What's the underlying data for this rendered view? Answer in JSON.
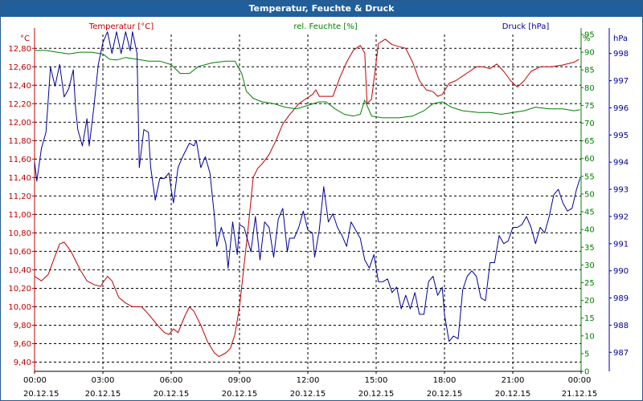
{
  "window": {
    "title": "Temperatur, Feuchte & Druck"
  },
  "chart_data": {
    "type": "line",
    "title": "Temperatur, Feuchte & Druck",
    "grid": true,
    "colors": {
      "temperature": "#c00000",
      "humidity": "#008000",
      "pressure": "#000099",
      "grid": "#000000"
    },
    "x_ticks": [
      {
        "time": "00:00",
        "date": "20.12.15"
      },
      {
        "time": "03:00",
        "date": "20.12.15"
      },
      {
        "time": "06:00",
        "date": "20.12.15"
      },
      {
        "time": "09:00",
        "date": "20.12.15"
      },
      {
        "time": "12:00",
        "date": "20.12.15"
      },
      {
        "time": "15:00",
        "date": "20.12.15"
      },
      {
        "time": "18:00",
        "date": "20.12.15"
      },
      {
        "time": "21:00",
        "date": "20.12.15"
      },
      {
        "time": "00:00",
        "date": "21.12.15"
      }
    ],
    "x_range_hours": [
      0,
      24
    ],
    "axes": {
      "temperature": {
        "label": "Temperatur [°C]",
        "unit": "°C",
        "side": "left",
        "range": [
          9.3,
          12.95
        ],
        "ticks": [
          "9,40",
          "9,60",
          "9,80",
          "10,00",
          "10,20",
          "10,40",
          "10,60",
          "10,80",
          "11,00",
          "11,20",
          "11,40",
          "11,60",
          "11,80",
          "12,00",
          "12,20",
          "12,40",
          "12,60",
          "12,80"
        ]
      },
      "humidity": {
        "label": "rel. Feuchte [%]",
        "unit": "%",
        "side": "right",
        "range": [
          0,
          95
        ],
        "ticks": [
          "0",
          "5",
          "10",
          "15",
          "20",
          "25",
          "30",
          "35",
          "40",
          "45",
          "50",
          "55",
          "60",
          "65",
          "70",
          "75",
          "80",
          "85",
          "90",
          "95"
        ]
      },
      "pressure": {
        "label": "Druck [hPa]",
        "unit": "hPa",
        "side": "right",
        "range": [
          986.3,
          998.7
        ],
        "ticks": [
          "987",
          "988",
          "989",
          "990",
          "991",
          "992",
          "993",
          "994",
          "995",
          "996",
          "997",
          "998"
        ]
      }
    },
    "series": [
      {
        "name": "Temperatur [°C]",
        "axis": "temperature",
        "points": [
          [
            0,
            10.33
          ],
          [
            0.3,
            10.28
          ],
          [
            0.6,
            10.35
          ],
          [
            0.9,
            10.55
          ],
          [
            1.1,
            10.68
          ],
          [
            1.3,
            10.7
          ],
          [
            1.6,
            10.6
          ],
          [
            2.0,
            10.4
          ],
          [
            2.3,
            10.28
          ],
          [
            2.6,
            10.24
          ],
          [
            2.9,
            10.22
          ],
          [
            3.0,
            10.26
          ],
          [
            3.2,
            10.33
          ],
          [
            3.4,
            10.28
          ],
          [
            3.7,
            10.1
          ],
          [
            4.0,
            10.04
          ],
          [
            4.3,
            10.0
          ],
          [
            4.7,
            10.0
          ],
          [
            5.0,
            9.92
          ],
          [
            5.4,
            9.8
          ],
          [
            5.7,
            9.72
          ],
          [
            5.9,
            9.7
          ],
          [
            6.1,
            9.76
          ],
          [
            6.3,
            9.72
          ],
          [
            6.6,
            9.9
          ],
          [
            6.8,
            10.0
          ],
          [
            7.0,
            9.95
          ],
          [
            7.3,
            9.8
          ],
          [
            7.6,
            9.62
          ],
          [
            7.9,
            9.5
          ],
          [
            8.1,
            9.46
          ],
          [
            8.4,
            9.5
          ],
          [
            8.6,
            9.55
          ],
          [
            8.8,
            9.7
          ],
          [
            9.0,
            10.0
          ],
          [
            9.2,
            10.45
          ],
          [
            9.4,
            10.9
          ],
          [
            9.6,
            11.4
          ],
          [
            9.8,
            11.5
          ],
          [
            10.0,
            11.55
          ],
          [
            10.3,
            11.65
          ],
          [
            10.6,
            11.8
          ],
          [
            10.9,
            11.98
          ],
          [
            11.2,
            12.08
          ],
          [
            11.6,
            12.2
          ],
          [
            11.9,
            12.25
          ],
          [
            12.2,
            12.3
          ],
          [
            12.35,
            12.35
          ],
          [
            12.5,
            12.28
          ],
          [
            12.8,
            12.28
          ],
          [
            13.1,
            12.28
          ],
          [
            13.4,
            12.48
          ],
          [
            13.7,
            12.65
          ],
          [
            14.0,
            12.78
          ],
          [
            14.3,
            12.83
          ],
          [
            14.5,
            12.75
          ],
          [
            14.6,
            12.2
          ],
          [
            14.8,
            12.25
          ],
          [
            15.1,
            12.85
          ],
          [
            15.4,
            12.9
          ],
          [
            15.7,
            12.84
          ],
          [
            16.3,
            12.8
          ],
          [
            16.6,
            12.65
          ],
          [
            16.9,
            12.45
          ],
          [
            17.2,
            12.35
          ],
          [
            17.5,
            12.33
          ],
          [
            17.7,
            12.28
          ],
          [
            17.9,
            12.3
          ],
          [
            18.2,
            12.42
          ],
          [
            18.5,
            12.45
          ],
          [
            18.8,
            12.5
          ],
          [
            19.1,
            12.55
          ],
          [
            19.4,
            12.6
          ],
          [
            19.7,
            12.6
          ],
          [
            20.0,
            12.58
          ],
          [
            20.3,
            12.63
          ],
          [
            20.6,
            12.55
          ],
          [
            20.9,
            12.45
          ],
          [
            21.2,
            12.38
          ],
          [
            21.5,
            12.45
          ],
          [
            21.8,
            12.55
          ],
          [
            22.2,
            12.6
          ],
          [
            22.7,
            12.6
          ],
          [
            23.2,
            12.62
          ],
          [
            23.7,
            12.65
          ],
          [
            23.9,
            12.68
          ]
        ]
      },
      {
        "name": "rel. Feuchte [%]",
        "axis": "humidity",
        "points": [
          [
            0,
            90.5
          ],
          [
            0.5,
            90.5
          ],
          [
            1.0,
            90
          ],
          [
            1.5,
            89.5
          ],
          [
            2.0,
            90
          ],
          [
            2.5,
            90
          ],
          [
            3.0,
            89.5
          ],
          [
            3.3,
            88
          ],
          [
            3.6,
            87.8
          ],
          [
            4.0,
            88.5
          ],
          [
            4.5,
            88
          ],
          [
            5.0,
            87.5
          ],
          [
            5.5,
            87.5
          ],
          [
            6.0,
            86.5
          ],
          [
            6.4,
            84
          ],
          [
            6.8,
            84
          ],
          [
            7.2,
            86
          ],
          [
            7.8,
            87
          ],
          [
            8.4,
            87.5
          ],
          [
            8.8,
            87.5
          ],
          [
            9.1,
            84
          ],
          [
            9.3,
            79
          ],
          [
            9.6,
            77
          ],
          [
            10.0,
            76
          ],
          [
            10.5,
            75.5
          ],
          [
            11.0,
            74.5
          ],
          [
            11.5,
            74
          ],
          [
            12.0,
            75
          ],
          [
            12.5,
            76
          ],
          [
            12.8,
            76
          ],
          [
            13.2,
            74
          ],
          [
            13.6,
            72.5
          ],
          [
            14.0,
            72
          ],
          [
            14.3,
            72.5
          ],
          [
            14.5,
            76.5
          ],
          [
            14.8,
            72
          ],
          [
            15.3,
            71.5
          ],
          [
            16.0,
            71.5
          ],
          [
            16.6,
            72
          ],
          [
            17.1,
            73.5
          ],
          [
            17.5,
            75.5
          ],
          [
            17.9,
            76
          ],
          [
            18.3,
            74.5
          ],
          [
            18.8,
            73.5
          ],
          [
            19.5,
            73
          ],
          [
            20.0,
            73
          ],
          [
            20.5,
            72.5
          ],
          [
            21.0,
            73
          ],
          [
            21.5,
            73.5
          ],
          [
            22.0,
            74.5
          ],
          [
            22.6,
            74
          ],
          [
            23.2,
            74
          ],
          [
            23.7,
            73.5
          ],
          [
            23.95,
            73.8
          ]
        ]
      },
      {
        "name": "Druck [hPa]",
        "axis": "pressure",
        "points": [
          [
            0,
            994.0
          ],
          [
            0.1,
            993.3
          ],
          [
            0.3,
            994.5
          ],
          [
            0.5,
            995.1
          ],
          [
            0.7,
            997.5
          ],
          [
            0.9,
            996.8
          ],
          [
            1.1,
            997.6
          ],
          [
            1.3,
            996.4
          ],
          [
            1.5,
            996.7
          ],
          [
            1.7,
            997.4
          ],
          [
            1.8,
            996.0
          ],
          [
            1.9,
            995.2
          ],
          [
            2.1,
            994.6
          ],
          [
            2.3,
            995.6
          ],
          [
            2.4,
            994.6
          ],
          [
            2.6,
            996.0
          ],
          [
            2.8,
            997.6
          ],
          [
            3.0,
            998.4
          ],
          [
            3.2,
            998.8
          ],
          [
            3.4,
            998.0
          ],
          [
            3.6,
            998.8
          ],
          [
            3.8,
            998.0
          ],
          [
            4.0,
            998.8
          ],
          [
            4.2,
            998.1
          ],
          [
            4.3,
            998.8
          ],
          [
            4.5,
            998.0
          ],
          [
            4.6,
            993.8
          ],
          [
            4.8,
            995.2
          ],
          [
            5.0,
            995.1
          ],
          [
            5.1,
            993.8
          ],
          [
            5.3,
            992.6
          ],
          [
            5.5,
            993.4
          ],
          [
            5.7,
            993.4
          ],
          [
            5.9,
            993.6
          ],
          [
            6.0,
            993.0
          ],
          [
            6.1,
            992.5
          ],
          [
            6.3,
            993.8
          ],
          [
            6.5,
            994.2
          ],
          [
            6.8,
            994.7
          ],
          [
            7.0,
            994.6
          ],
          [
            7.1,
            994.8
          ],
          [
            7.3,
            993.8
          ],
          [
            7.5,
            994.2
          ],
          [
            7.7,
            993.6
          ],
          [
            7.9,
            992.0
          ],
          [
            8.0,
            990.9
          ],
          [
            8.2,
            991.6
          ],
          [
            8.4,
            991.0
          ],
          [
            8.5,
            990.1
          ],
          [
            8.7,
            991.8
          ],
          [
            8.9,
            990.6
          ],
          [
            9.0,
            991.7
          ],
          [
            9.2,
            991.6
          ],
          [
            9.5,
            990.7
          ],
          [
            9.7,
            992.0
          ],
          [
            9.9,
            990.4
          ],
          [
            10.1,
            991.8
          ],
          [
            10.3,
            991.6
          ],
          [
            10.5,
            990.5
          ],
          [
            10.7,
            991.9
          ],
          [
            10.9,
            992.3
          ],
          [
            11.1,
            990.7
          ],
          [
            11.2,
            991.2
          ],
          [
            11.4,
            991.2
          ],
          [
            11.6,
            991.6
          ],
          [
            11.8,
            992.2
          ],
          [
            12.0,
            991.5
          ],
          [
            12.2,
            991.4
          ],
          [
            12.3,
            990.5
          ],
          [
            12.5,
            991.5
          ],
          [
            12.7,
            993.1
          ],
          [
            12.9,
            991.8
          ],
          [
            13.1,
            992.1
          ],
          [
            13.3,
            991.6
          ],
          [
            13.5,
            991.3
          ],
          [
            13.7,
            990.9
          ],
          [
            13.9,
            991.8
          ],
          [
            14.1,
            991.5
          ],
          [
            14.3,
            991.2
          ],
          [
            14.5,
            990.4
          ],
          [
            14.7,
            990.1
          ],
          [
            14.9,
            990.6
          ],
          [
            15.1,
            989.6
          ],
          [
            15.3,
            989.6
          ],
          [
            15.5,
            989.7
          ],
          [
            15.7,
            989.2
          ],
          [
            15.9,
            989.4
          ],
          [
            16.1,
            988.6
          ],
          [
            16.3,
            989.1
          ],
          [
            16.5,
            988.6
          ],
          [
            16.7,
            989.2
          ],
          [
            16.9,
            988.4
          ],
          [
            17.1,
            988.4
          ],
          [
            17.3,
            989.6
          ],
          [
            17.5,
            989.8
          ],
          [
            17.7,
            989.1
          ],
          [
            17.9,
            989.4
          ],
          [
            18.0,
            988.4
          ],
          [
            18.2,
            987.4
          ],
          [
            18.4,
            987.6
          ],
          [
            18.6,
            987.5
          ],
          [
            18.8,
            989.3
          ],
          [
            19.0,
            989.8
          ],
          [
            19.2,
            990.0
          ],
          [
            19.4,
            989.8
          ],
          [
            19.6,
            989.0
          ],
          [
            19.8,
            988.9
          ],
          [
            20.0,
            990.3
          ],
          [
            20.2,
            990.3
          ],
          [
            20.4,
            991.3
          ],
          [
            20.6,
            991.0
          ],
          [
            20.8,
            991.1
          ],
          [
            21.0,
            991.6
          ],
          [
            21.2,
            991.6
          ],
          [
            21.4,
            991.7
          ],
          [
            21.6,
            992.0
          ],
          [
            21.8,
            991.6
          ],
          [
            22.0,
            991.0
          ],
          [
            22.2,
            991.6
          ],
          [
            22.4,
            991.4
          ],
          [
            22.6,
            992.0
          ],
          [
            22.8,
            992.8
          ],
          [
            23.0,
            993.0
          ],
          [
            23.2,
            992.5
          ],
          [
            23.4,
            992.2
          ],
          [
            23.6,
            992.3
          ],
          [
            23.8,
            993.0
          ],
          [
            23.95,
            993.4
          ]
        ]
      }
    ]
  }
}
